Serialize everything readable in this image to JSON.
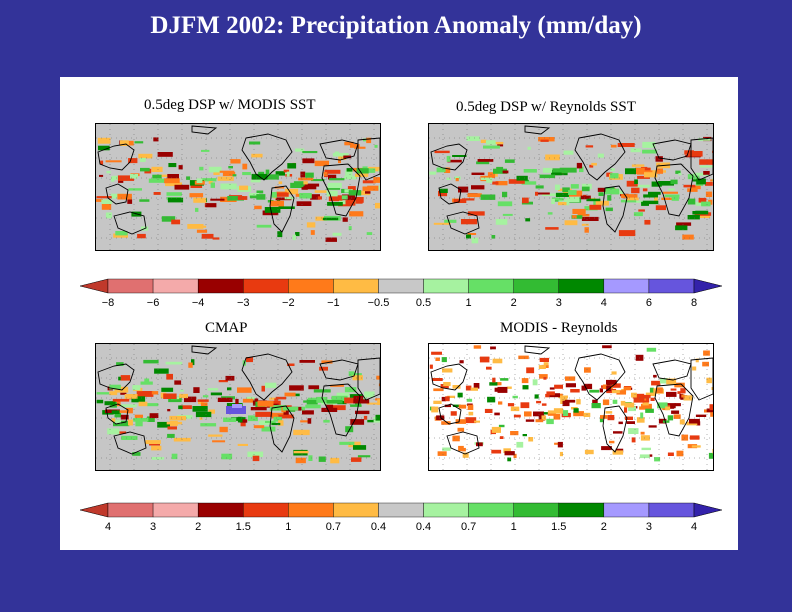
{
  "slide": {
    "title": "DJFM 2002: Precipitation Anomaly (mm/day)"
  },
  "chart_data": [
    {
      "type": "heatmap",
      "title": "0.5deg DSP w/ MODIS SST",
      "variable": "Precipitation anomaly",
      "units": "mm/day",
      "colorbar": "colorbar_top"
    },
    {
      "type": "heatmap",
      "title": "0.5deg DSP w/ Reynolds SST",
      "variable": "Precipitation anomaly",
      "units": "mm/day",
      "colorbar": "colorbar_top"
    },
    {
      "type": "heatmap",
      "title": "CMAP",
      "variable": "Precipitation anomaly",
      "units": "mm/day",
      "colorbar": "colorbar_bottom"
    },
    {
      "type": "heatmap",
      "title": "MODIS - Reynolds",
      "variable": "Precipitation difference",
      "units": "mm/day",
      "colorbar": "colorbar_bottom"
    }
  ],
  "colorbar_top": {
    "labels": [
      "−8",
      "−6",
      "−4",
      "−3",
      "−2",
      "−1",
      "−0.5",
      "0.5",
      "1",
      "2",
      "3",
      "4",
      "6",
      "8"
    ]
  },
  "colorbar_bottom": {
    "labels": [
      "4",
      "3",
      "2",
      "1.5",
      "1",
      "0.7",
      "0.4",
      "0.4",
      "0.7",
      "1",
      "1.5",
      "2",
      "3",
      "4"
    ]
  },
  "palette": {
    "arrow_left": "#c0392b",
    "classes": [
      "#e07070",
      "#f4aaaa",
      "#990000",
      "#e83a10",
      "#ff7a1a",
      "#ffbb44",
      "#c8c8c8",
      "#a6f2a0",
      "#66e066",
      "#33bb33",
      "#008800",
      "#a599ff",
      "#6655dd"
    ],
    "arrow_right": "#3322aa",
    "land_outline": "#000000",
    "map_background": "#c6c6c6",
    "diff_background": "#ffffff"
  }
}
